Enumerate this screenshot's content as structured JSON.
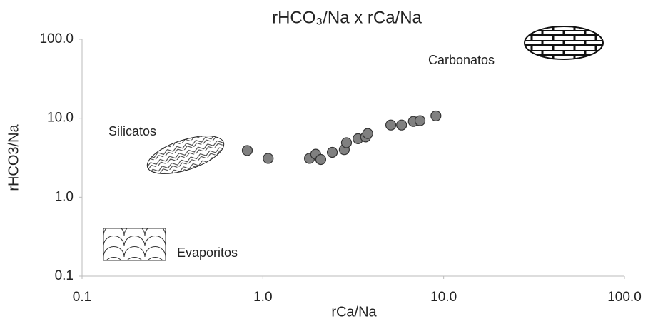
{
  "chart_data": {
    "type": "scatter",
    "title": "rHCO₃/Na x rCa/Na",
    "x_label": "rCa/Na",
    "y_label": "rHCO3/Na",
    "log_x": true,
    "log_y": true,
    "xlim": [
      0.1,
      100
    ],
    "ylim": [
      0.1,
      100
    ],
    "xticks": [
      {
        "value": 0.1,
        "label": "0.1"
      },
      {
        "value": 1,
        "label": "1.0"
      },
      {
        "value": 10,
        "label": "10.0"
      },
      {
        "value": 100,
        "label": "100.0"
      }
    ],
    "yticks": [
      {
        "value": 0.1,
        "label": "0.1"
      },
      {
        "value": 1,
        "label": "1.0"
      },
      {
        "value": 10,
        "label": "10.0"
      },
      {
        "value": 100,
        "label": "100.0"
      }
    ],
    "color": "#808080",
    "x": [
      0.82,
      1.07,
      1.81,
      1.96,
      2.09,
      2.42,
      2.82,
      2.9,
      3.36,
      3.7,
      3.8,
      5.1,
      5.85,
      6.8,
      7.4,
      9.06
    ],
    "values": [
      3.9,
      3.1,
      3.1,
      3.5,
      3.0,
      3.7,
      4.0,
      4.9,
      5.5,
      5.8,
      6.4,
      8.2,
      8.2,
      9.1,
      9.3,
      10.7
    ],
    "annotations": [
      "Silicatos",
      "Carbonatos",
      "Evaporitos"
    ]
  }
}
